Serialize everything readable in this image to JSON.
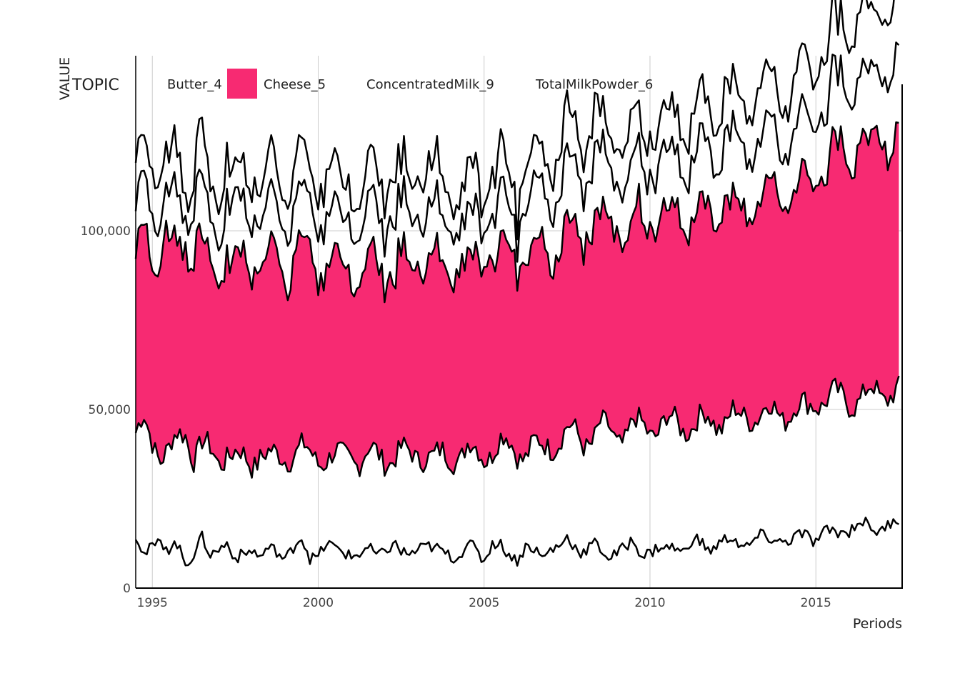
{
  "chart_data": {
    "type": "area",
    "title": "",
    "xlabel": "Periods",
    "ylabel": "VALUE",
    "legend_title": "TOPIC",
    "legend_position": "top",
    "grid": true,
    "xlim": [
      1994.5,
      2017.6
    ],
    "ylim": [
      0,
      149000
    ],
    "x_ticks": [
      1995,
      2000,
      2005,
      2010,
      2015
    ],
    "y_ticks": [
      0,
      50000,
      100000
    ],
    "y_tick_labels": [
      "0",
      "50,000",
      "100,000"
    ],
    "x_start": 1994.5,
    "step_years": 0.25,
    "colors": {
      "fill": "#f72a72",
      "line": "#000000",
      "grid": "#cccccc"
    },
    "series": [
      {
        "name": "Butter_4",
        "quarterly_approx": [
          42000,
          47000,
          42000,
          37000,
          38000,
          42000,
          44000,
          37000,
          40000,
          38000,
          36000,
          38000,
          37000,
          36000,
          35000,
          38000,
          37000,
          36000,
          37000,
          38000,
          39000,
          37000,
          36000,
          37000,
          37000,
          36000,
          37000,
          36000,
          38000,
          37000,
          36000,
          37000,
          38000,
          37000,
          37000,
          38000,
          36000,
          37000,
          37000,
          37000,
          39000,
          38000,
          37000,
          39000,
          41000,
          40000,
          38000,
          38000,
          40000,
          39000,
          40000,
          42000,
          44000,
          43000,
          41000,
          42000,
          45000,
          44000,
          42000,
          43000,
          46000,
          45000,
          44000,
          45000,
          47000,
          46000,
          45000,
          46000,
          47000,
          47000,
          46000,
          47000,
          49000,
          47000,
          48000,
          49000,
          50000,
          49000,
          48000,
          50000,
          51000,
          50000,
          52000,
          53000,
          54000,
          53000,
          52000,
          53000,
          54000,
          55000,
          54000,
          55000,
          55000
        ]
      },
      {
        "name": "Cheese_5",
        "quarterly_approx": [
          50000,
          57000,
          50000,
          59000,
          57000,
          55000,
          54000,
          58000,
          57000,
          55000,
          53000,
          55000,
          54000,
          55000,
          53000,
          54000,
          56000,
          56000,
          54000,
          55000,
          56000,
          54000,
          53000,
          55000,
          55000,
          52000,
          50000,
          52000,
          51000,
          52000,
          53000,
          54000,
          52000,
          52000,
          54000,
          54000,
          53000,
          53000,
          55000,
          54000,
          53000,
          53000,
          55000,
          54000,
          55000,
          55000,
          56000,
          57000,
          55000,
          58000,
          56000,
          57000,
          58000,
          59000,
          57000,
          57000,
          58000,
          58000,
          58000,
          56000,
          56000,
          57000,
          59000,
          58000,
          59000,
          58000,
          59000,
          59000,
          58000,
          58000,
          59000,
          60000,
          60000,
          59000,
          59000,
          60000,
          61000,
          62000,
          62000,
          62000,
          63000,
          62000,
          63000,
          64000,
          66000,
          68000,
          70000,
          69000,
          68000,
          70000,
          71000,
          71000,
          72000
        ]
      },
      {
        "name": "ConcentratedMilk_9",
        "quarterly_approx": [
          12000,
          14000,
          16000,
          10000,
          11000,
          15000,
          10000,
          13000,
          16000,
          12000,
          11000,
          15000,
          15000,
          14000,
          16000,
          12000,
          14000,
          14000,
          15000,
          14000,
          14000,
          13000,
          15000,
          14000,
          14000,
          13000,
          15000,
          13000,
          14000,
          15000,
          14000,
          15000,
          13000,
          14000,
          14000,
          15000,
          12000,
          13000,
          15000,
          11000,
          12000,
          14000,
          10000,
          12000,
          15000,
          12000,
          11000,
          14000,
          17000,
          16000,
          17000,
          16000,
          17000,
          17000,
          16000,
          17000,
          17000,
          16000,
          15000,
          16000,
          16000,
          15000,
          15000,
          16000,
          15000,
          16000,
          17000,
          16000,
          17000,
          17000,
          16000,
          17000,
          18000,
          18000,
          17000,
          17000,
          18000,
          16000,
          15000,
          15000,
          18000,
          16000,
          17000,
          18000,
          18000,
          19000,
          20000,
          20000,
          18000,
          17000,
          20000,
          21000,
          22000
        ]
      },
      {
        "name": "TotalMilkPowder_6",
        "quarterly_approx": [
          14000,
          10000,
          13000,
          12000,
          10000,
          13000,
          8000,
          9000,
          13000,
          10000,
          12000,
          12000,
          7000,
          10000,
          12000,
          8000,
          10000,
          11000,
          9000,
          11000,
          13000,
          9000,
          10000,
          12000,
          10000,
          11000,
          10000,
          9000,
          10000,
          10000,
          11000,
          12000,
          9000,
          10000,
          12000,
          11000,
          10000,
          11000,
          10000,
          8000,
          12000,
          11000,
          9000,
          12000,
          11000,
          10000,
          9000,
          11000,
          10000,
          9000,
          12000,
          11000,
          13000,
          12000,
          11000,
          12000,
          10000,
          9000,
          11000,
          11000,
          12000,
          10000,
          11000,
          11000,
          10000,
          12000,
          11000,
          13000,
          12000,
          11000,
          13000,
          13000,
          13000,
          12000,
          13000,
          14000,
          13000,
          14000,
          14000,
          13000,
          14000,
          15000,
          14000,
          15000,
          15000,
          16000,
          17000,
          18000,
          17000,
          17000,
          17000,
          18000,
          18000
        ]
      }
    ]
  }
}
